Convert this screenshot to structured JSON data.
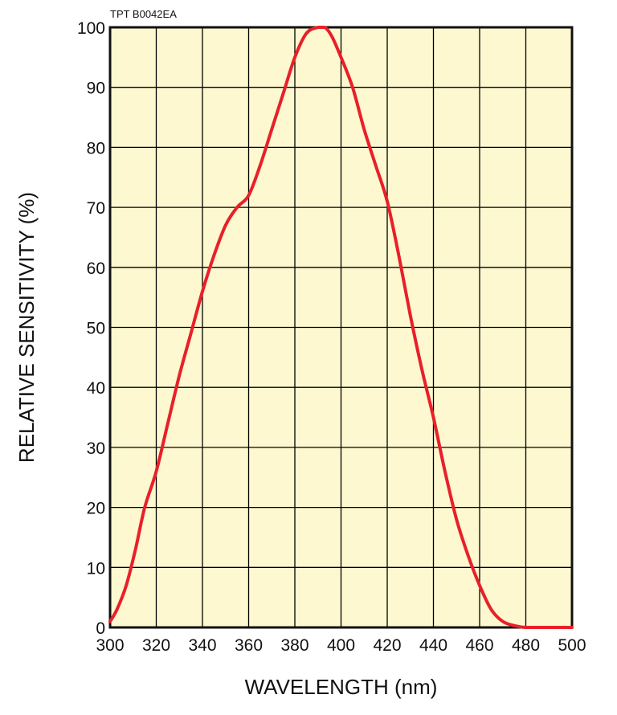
{
  "figure_code": "TPT B0042EA",
  "chart_data": {
    "type": "line",
    "xlabel": "WAVELENGTH (nm)",
    "ylabel": "RELATIVE SENSITIVITY (%)",
    "xlim": [
      300,
      500
    ],
    "ylim": [
      0,
      100
    ],
    "xticks": [
      300,
      320,
      340,
      360,
      380,
      400,
      420,
      440,
      460,
      480,
      500
    ],
    "yticks": [
      0,
      10,
      20,
      30,
      40,
      50,
      60,
      70,
      80,
      90,
      100
    ],
    "grid": true,
    "colors": {
      "plot_background": "#fdf8d0",
      "line": "#e8202a",
      "grid": "#000000"
    },
    "series": [
      {
        "x": [
          300,
          303,
          307,
          311,
          315,
          320,
          325,
          330,
          335,
          340,
          345,
          350,
          355,
          360,
          365,
          370,
          375,
          380,
          385,
          390,
          393,
          396,
          400,
          405,
          410,
          415,
          420,
          425,
          430,
          435,
          440,
          445,
          450,
          455,
          460,
          465,
          470,
          475,
          480,
          490,
          500
        ],
        "y": [
          1,
          3,
          7,
          13,
          20,
          26,
          34,
          42,
          49,
          56,
          62,
          67,
          70,
          72,
          77,
          83,
          89,
          95,
          99,
          100,
          100,
          98.5,
          95,
          90,
          83,
          77,
          71,
          62,
          52,
          43,
          35,
          26,
          18,
          12,
          7,
          3,
          1,
          0.3,
          0,
          0,
          0
        ]
      }
    ]
  }
}
